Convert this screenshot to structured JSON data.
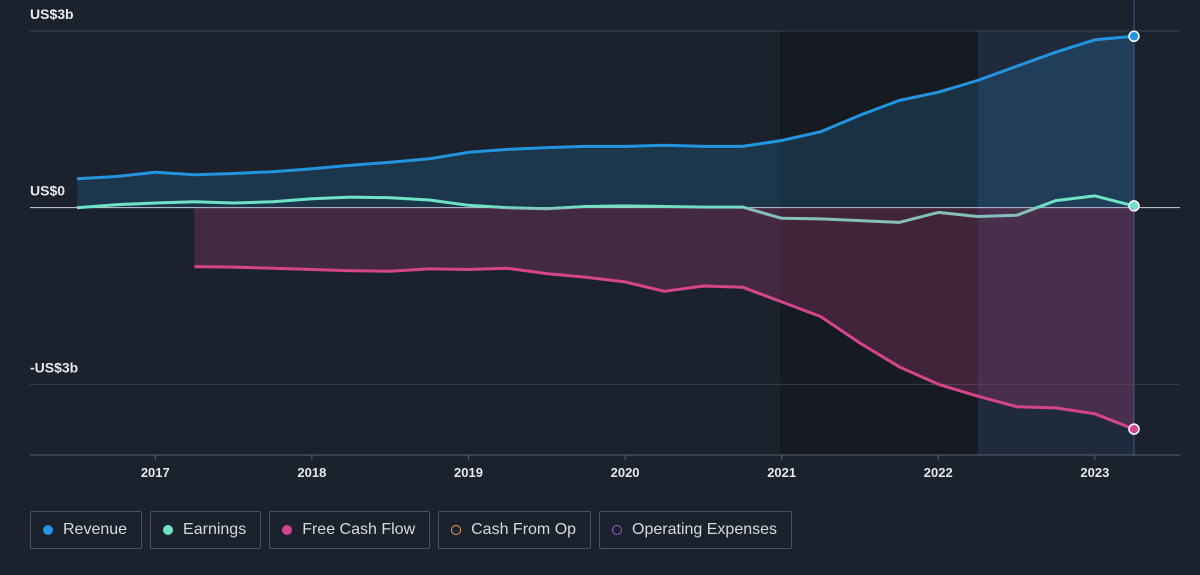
{
  "chart_data": {
    "type": "line",
    "x": [
      2016.5,
      2016.75,
      2017,
      2017.25,
      2017.5,
      2017.75,
      2018,
      2018.25,
      2018.5,
      2018.75,
      2019,
      2019.25,
      2019.5,
      2019.75,
      2020,
      2020.25,
      2020.5,
      2020.75,
      2021,
      2021.25,
      2021.5,
      2021.75,
      2022,
      2022.25,
      2022.5,
      2022.75,
      2023,
      2023.25
    ],
    "series": [
      {
        "name": "Revenue",
        "color": "#2394df",
        "visible": true,
        "values": [
          0.49,
          0.53,
          0.6,
          0.56,
          0.58,
          0.61,
          0.66,
          0.72,
          0.77,
          0.83,
          0.94,
          0.99,
          1.02,
          1.04,
          1.04,
          1.06,
          1.04,
          1.04,
          1.14,
          1.29,
          1.57,
          1.82,
          1.96,
          2.16,
          2.4,
          2.64,
          2.85,
          2.91
        ]
      },
      {
        "name": "Earnings",
        "color": "#6fe3c5",
        "visible": true,
        "values": [
          0,
          0.05,
          0.08,
          0.1,
          0.08,
          0.1,
          0.15,
          0.18,
          0.17,
          0.13,
          0.04,
          0,
          -0.02,
          0.02,
          0.03,
          0.02,
          0.01,
          0.01,
          -0.18,
          -0.19,
          -0.22,
          -0.25,
          -0.08,
          -0.15,
          -0.13,
          0.12,
          0.2,
          0.03
        ]
      },
      {
        "name": "Free Cash Flow",
        "color": "#d6448d",
        "visible": true,
        "values": [
          null,
          null,
          null,
          -1.0,
          -1.01,
          -1.03,
          -1.05,
          -1.07,
          -1.08,
          -1.04,
          -1.05,
          -1.03,
          -1.12,
          -1.18,
          -1.26,
          -1.42,
          -1.33,
          -1.35,
          -1.6,
          -1.85,
          -2.3,
          -2.7,
          -3.0,
          -3.2,
          -3.38,
          -3.4,
          -3.5,
          -3.76
        ]
      },
      {
        "name": "Cash From Op",
        "color": "#e8a15a",
        "visible": false
      },
      {
        "name": "Operating Expenses",
        "color": "#9b59d6",
        "visible": false
      }
    ],
    "xlim": [
      2016.5,
      2023.25
    ],
    "xticks": [
      2017,
      2018,
      2019,
      2020,
      2021,
      2022,
      2023
    ],
    "ylim": [
      -4.2,
      3
    ],
    "yticks": [
      {
        "value": 3,
        "label": "US$3b"
      },
      {
        "value": 0,
        "label": "US$0"
      },
      {
        "value": -3,
        "label": "-US$3b"
      }
    ]
  }
}
